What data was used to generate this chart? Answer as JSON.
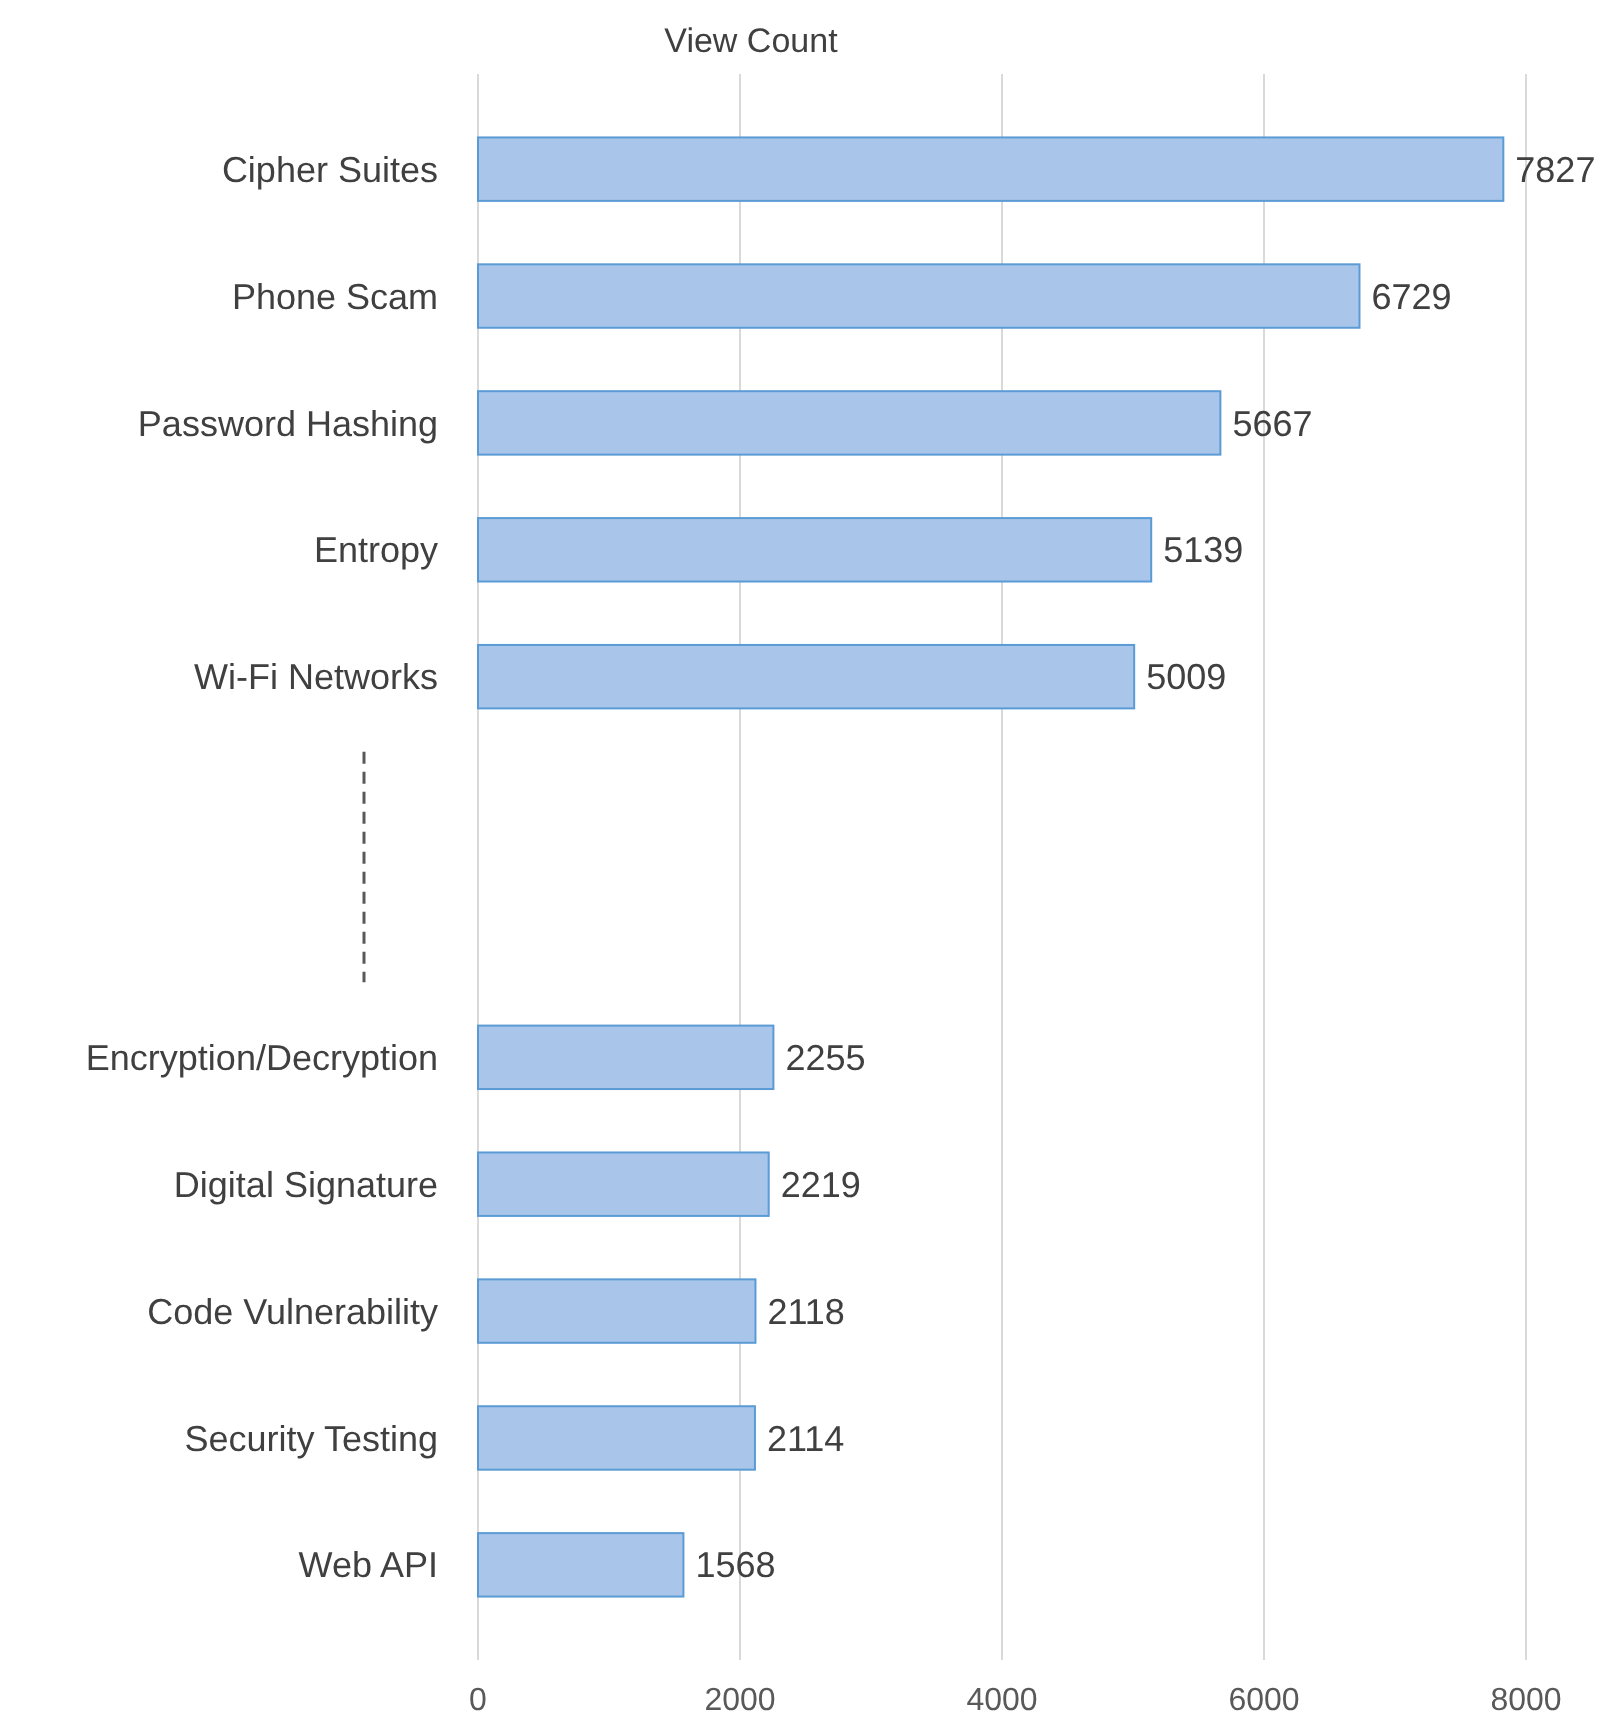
{
  "chart_data": {
    "type": "bar",
    "orientation": "horizontal",
    "title": "View Count",
    "categories": [
      "Cipher Suites",
      "Phone Scam",
      "Password Hashing",
      "Entropy",
      "Wi-Fi Networks",
      null,
      null,
      "Encryption/Decryption",
      "Digital Signature",
      "Code Vulnerability",
      "Security Testing",
      "Web API"
    ],
    "values": [
      7827,
      6729,
      5667,
      5139,
      5009,
      null,
      null,
      2255,
      2219,
      2118,
      2114,
      1568
    ],
    "color": "#a9c6ea",
    "xlim": [
      0,
      8000
    ],
    "xticks": [
      0,
      2000,
      4000,
      6000,
      8000
    ],
    "grid": "x",
    "data_labels": true
  }
}
